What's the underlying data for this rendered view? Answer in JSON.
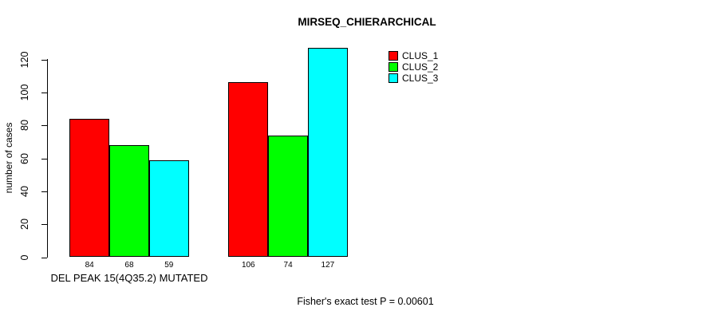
{
  "chart_data": {
    "type": "bar",
    "title": "MIRSEQ_CHIERARCHICAL",
    "ylabel": "number of cases",
    "categories": [
      "DEL PEAK 15(4Q35.2) MUTATED",
      ""
    ],
    "series": [
      {
        "name": "CLUS_1",
        "color": "#ff0000",
        "values": [
          84,
          106
        ]
      },
      {
        "name": "CLUS_2",
        "color": "#00ff00",
        "values": [
          68,
          74
        ]
      },
      {
        "name": "CLUS_3",
        "color": "#00ffff",
        "values": [
          59,
          127
        ]
      }
    ],
    "yticks": [
      0,
      20,
      40,
      60,
      80,
      100,
      120
    ],
    "ylim": [
      0,
      128
    ],
    "grid": false,
    "legend_position": "top-right",
    "bar_border_color": "#000000",
    "background_color": "#ffffff"
  },
  "footer_annotation": "Fisher's exact test P = 0.00601"
}
